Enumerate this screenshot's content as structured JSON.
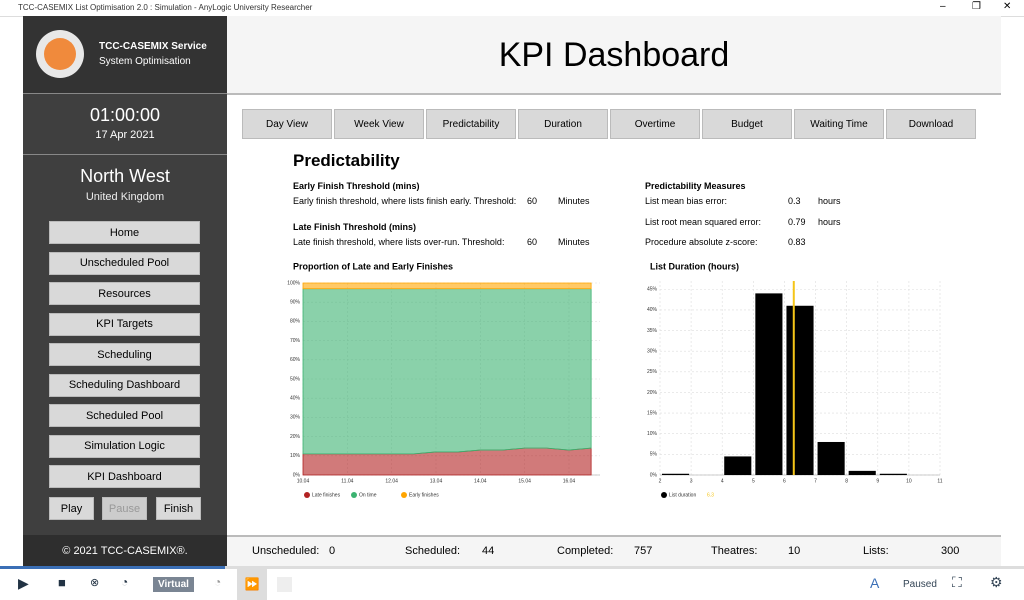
{
  "window": {
    "title": "TCC-CASEMIX List Optimisation 2.0 : Simulation - AnyLogic University Researcher"
  },
  "sidebar": {
    "logo_title": "TCC-CASEMIX Service",
    "logo_subtitle": "System Optimisation",
    "time": "01:00:00",
    "date": "17 Apr 2021",
    "region": "North West",
    "country": "United Kingdom",
    "menu": [
      "Home",
      "Unscheduled Pool",
      "Resources",
      "KPI Targets",
      "Scheduling",
      "Scheduling Dashboard",
      "Scheduled Pool",
      "Simulation Logic",
      "KPI Dashboard"
    ],
    "controls": [
      "Play",
      "Pause",
      "Finish"
    ],
    "footer": "© 2021 TCC-CASEMIX®."
  },
  "header": {
    "title": "KPI Dashboard"
  },
  "tabs": [
    "Day View",
    "Week View",
    "Predictability",
    "Duration",
    "Overtime",
    "Budget",
    "Waiting Time",
    "Download"
  ],
  "section": {
    "title": "Predictability",
    "early": {
      "heading": "Early Finish Threshold (mins)",
      "text": "Early finish threshold, where lists finish early. Threshold:",
      "value": 60,
      "unit": "Minutes"
    },
    "late": {
      "heading": "Late Finish Threshold (mins)",
      "text": "Late finish threshold, where lists over-run. Threshold:",
      "value": 60,
      "unit": "Minutes"
    },
    "measures": {
      "heading": "Predictability Measures",
      "rows": [
        {
          "label": "List mean bias error:",
          "value": 0.3,
          "unit": "hours"
        },
        {
          "label": "List root mean squared error:",
          "value": 0.79,
          "unit": "hours"
        },
        {
          "label": "Procedure absolute z-score:",
          "value": 0.83
        }
      ]
    }
  },
  "chart_data": [
    {
      "type": "stacked_area",
      "title": "Proportion of Late and Early Finishes",
      "x": [
        10,
        10.5,
        11,
        11.5,
        12,
        12.5,
        13,
        13.5,
        14,
        14.5,
        15,
        15.5,
        16,
        16.5
      ],
      "series": [
        {
          "name": "Late finishes",
          "color": "#b22222",
          "values": [
            11,
            11,
            11,
            11,
            11,
            11,
            12,
            12,
            13,
            13,
            14,
            14,
            13,
            14
          ]
        },
        {
          "name": "On time",
          "color": "#3cb371",
          "values": [
            86,
            86,
            86,
            86,
            86,
            86,
            85,
            85,
            84,
            84,
            83,
            83,
            84,
            83
          ]
        },
        {
          "name": "Early finishes",
          "color": "#ffa500",
          "values": [
            3,
            3,
            3,
            3,
            3,
            3,
            3,
            3,
            3,
            3,
            3,
            3,
            3,
            3
          ]
        }
      ],
      "xlim": [
        10,
        16.7
      ],
      "xticks": [
        {
          "value": 10,
          "label": "10.04"
        },
        {
          "value": 11,
          "label": "11.04"
        },
        {
          "value": 12,
          "label": "12.04"
        },
        {
          "value": 13,
          "label": "13.04"
        },
        {
          "value": 14,
          "label": "14.04"
        },
        {
          "value": 15,
          "label": "15.04"
        },
        {
          "value": 16,
          "label": "16.04"
        }
      ],
      "ylim": [
        0,
        100
      ],
      "yticks": [
        {
          "value": 0,
          "label": "0%"
        },
        {
          "value": 10,
          "label": "10%"
        },
        {
          "value": 20,
          "label": "20%"
        },
        {
          "value": 30,
          "label": "30%"
        },
        {
          "value": 40,
          "label": "40%"
        },
        {
          "value": 50,
          "label": "50%"
        },
        {
          "value": 60,
          "label": "60%"
        },
        {
          "value": 70,
          "label": "70%"
        },
        {
          "value": 80,
          "label": "80%"
        },
        {
          "value": 90,
          "label": "90%"
        },
        {
          "value": 100,
          "label": "100%"
        }
      ],
      "grid": true
    },
    {
      "type": "histogram",
      "title": "List Duration (hours)",
      "name": "List duration",
      "color": "#000000",
      "bins": [
        2,
        3,
        4,
        5,
        6,
        7,
        8,
        9,
        10,
        11
      ],
      "values": [
        0.3,
        0,
        4.5,
        44,
        41,
        8,
        1,
        0.3,
        0
      ],
      "mean_line": {
        "value": 6.3,
        "label": "6.3",
        "color": "#f5c518"
      },
      "xlim": [
        2,
        11
      ],
      "xticks": [
        2,
        3,
        4,
        5,
        6,
        7,
        8,
        9,
        10,
        11
      ],
      "ylim": [
        0,
        47
      ],
      "yticks": [
        {
          "value": 0,
          "label": "0%"
        },
        {
          "value": 5,
          "label": "5%"
        },
        {
          "value": 10,
          "label": "10%"
        },
        {
          "value": 15,
          "label": "15%"
        },
        {
          "value": 20,
          "label": "20%"
        },
        {
          "value": 25,
          "label": "25%"
        },
        {
          "value": 30,
          "label": "30%"
        },
        {
          "value": 35,
          "label": "35%"
        },
        {
          "value": 40,
          "label": "40%"
        },
        {
          "value": 45,
          "label": "45%"
        }
      ],
      "grid": true
    }
  ],
  "status": [
    {
      "label": "Unscheduled:",
      "value": 0
    },
    {
      "label": "Scheduled:",
      "value": 44
    },
    {
      "label": "Completed:",
      "value": 757
    },
    {
      "label": "Theatres:",
      "value": 10
    },
    {
      "label": "Lists:",
      "value": 300
    }
  ],
  "toolbar": {
    "mode": "Virtual",
    "state": "Paused"
  }
}
